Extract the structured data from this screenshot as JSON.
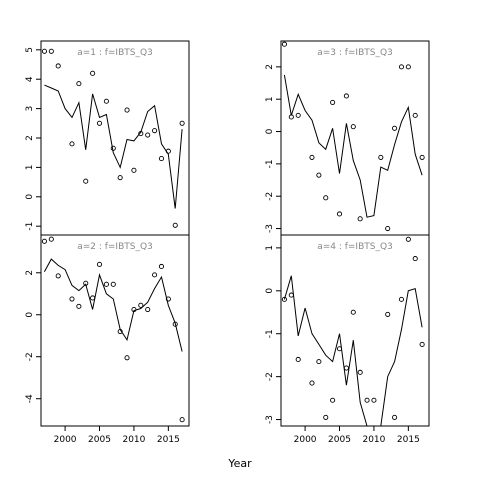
{
  "xlabel": "Year",
  "chart_data": [
    {
      "type": "scatter",
      "title": "a=1  :  f=IBTS_Q3",
      "xlim": [
        1996.5,
        2018
      ],
      "ylim": [
        -1.3,
        5.3
      ],
      "yticks": [
        -1,
        0,
        1,
        2,
        3,
        4,
        5
      ],
      "xticks": [
        2000,
        2005,
        2010,
        2015
      ],
      "show_xticks": false,
      "points": {
        "x": [
          1997,
          1998,
          1999,
          2001,
          2002,
          2003,
          2004,
          2005,
          2006,
          2007,
          2008,
          2009,
          2010,
          2011,
          2012,
          2013,
          2014,
          2015,
          2016,
          2017
        ],
        "y": [
          4.95,
          4.95,
          4.45,
          1.8,
          3.85,
          0.53,
          4.2,
          2.5,
          3.25,
          1.65,
          0.65,
          2.95,
          0.9,
          2.15,
          2.1,
          2.25,
          1.3,
          1.55,
          -0.97,
          2.5
        ]
      },
      "line": {
        "x": [
          1997,
          1998,
          1999,
          2000,
          2001,
          2002,
          2003,
          2004,
          2005,
          2006,
          2007,
          2008,
          2009,
          2010,
          2011,
          2012,
          2013,
          2014,
          2015,
          2016,
          2017
        ],
        "y": [
          3.8,
          3.7,
          3.6,
          3.0,
          2.7,
          3.2,
          1.6,
          3.5,
          2.7,
          2.8,
          1.5,
          1.0,
          1.95,
          1.9,
          2.2,
          2.9,
          3.1,
          1.8,
          1.45,
          -0.4,
          2.3
        ]
      }
    },
    {
      "type": "scatter",
      "title": "a=3  :  f=IBTS_Q3",
      "xlim": [
        1996.5,
        2018
      ],
      "ylim": [
        -3.2,
        2.8
      ],
      "yticks": [
        -3,
        -2,
        -1,
        0,
        1,
        2
      ],
      "xticks": [
        2000,
        2005,
        2010,
        2015
      ],
      "show_xticks": false,
      "points": {
        "x": [
          1997,
          1998,
          1999,
          2001,
          2002,
          2003,
          2004,
          2005,
          2006,
          2007,
          2008,
          2011,
          2012,
          2013,
          2014,
          2015,
          2016,
          2017
        ],
        "y": [
          2.7,
          0.45,
          0.5,
          -0.8,
          -1.35,
          -2.05,
          0.9,
          -2.55,
          1.1,
          0.15,
          -2.7,
          -0.8,
          -3.0,
          0.1,
          2.0,
          2.0,
          0.5,
          -0.8
        ]
      },
      "line": {
        "x": [
          1997,
          1998,
          1999,
          2000,
          2001,
          2002,
          2003,
          2004,
          2005,
          2006,
          2007,
          2008,
          2009,
          2010,
          2011,
          2012,
          2013,
          2014,
          2015,
          2016,
          2017
        ],
        "y": [
          1.75,
          0.5,
          1.15,
          0.65,
          0.35,
          -0.35,
          -0.55,
          0.1,
          -1.3,
          0.25,
          -0.9,
          -1.5,
          -2.65,
          -2.6,
          -1.1,
          -1.2,
          -0.4,
          0.3,
          0.75,
          -0.7,
          -1.35
        ]
      }
    },
    {
      "type": "scatter",
      "title": "a=2  :  f=IBTS_Q3",
      "xlim": [
        1996.5,
        2018
      ],
      "ylim": [
        -5.3,
        3.8
      ],
      "yticks": [
        -4,
        -2,
        0,
        2
      ],
      "xticks": [
        2000,
        2005,
        2010,
        2015
      ],
      "show_xticks": true,
      "points": {
        "x": [
          1997,
          1998,
          1999,
          2001,
          2002,
          2003,
          2004,
          2005,
          2006,
          2007,
          2008,
          2009,
          2010,
          2011,
          2012,
          2013,
          2014,
          2015,
          2016,
          2017
        ],
        "y": [
          3.5,
          3.6,
          1.85,
          0.75,
          0.4,
          1.5,
          0.8,
          2.4,
          1.45,
          1.45,
          -0.8,
          -2.05,
          0.25,
          0.45,
          0.25,
          1.9,
          2.3,
          0.75,
          -0.45,
          -5.0
        ]
      },
      "line": {
        "x": [
          1997,
          1998,
          1999,
          2000,
          2001,
          2002,
          2003,
          2004,
          2005,
          2006,
          2007,
          2008,
          2009,
          2010,
          2011,
          2012,
          2013,
          2014,
          2015,
          2016,
          2017
        ],
        "y": [
          2.05,
          2.65,
          2.35,
          2.15,
          1.4,
          1.15,
          1.45,
          0.25,
          1.9,
          1.0,
          0.75,
          -0.7,
          -1.2,
          0.2,
          0.3,
          0.6,
          1.25,
          1.8,
          0.45,
          -0.4,
          -1.75
        ]
      }
    },
    {
      "type": "scatter",
      "title": "a=4  :  f=IBTS_Q3",
      "xlim": [
        1996.5,
        2018
      ],
      "ylim": [
        -3.15,
        1.3
      ],
      "yticks": [
        -3,
        -2,
        -1,
        0,
        1
      ],
      "xticks": [
        2000,
        2005,
        2010,
        2015
      ],
      "show_xticks": true,
      "points": {
        "x": [
          1997,
          1998,
          1999,
          2001,
          2002,
          2003,
          2004,
          2005,
          2006,
          2007,
          2008,
          2009,
          2010,
          2012,
          2013,
          2014,
          2015,
          2016,
          2017
        ],
        "y": [
          -0.2,
          -0.1,
          -1.6,
          -2.15,
          -1.65,
          -2.95,
          -2.55,
          -1.35,
          -1.8,
          -0.5,
          -1.9,
          -2.55,
          -2.55,
          -0.55,
          -2.95,
          -0.2,
          1.2,
          0.75,
          -1.25
        ]
      },
      "line": {
        "x": [
          1997,
          1998,
          1999,
          2000,
          2001,
          2002,
          2003,
          2004,
          2005,
          2006,
          2007,
          2008,
          2009,
          2010,
          2011,
          2012,
          2013,
          2014,
          2015,
          2016,
          2017
        ],
        "y": [
          -0.2,
          0.35,
          -1.05,
          -0.4,
          -1.0,
          -1.25,
          -1.5,
          -1.65,
          -1.0,
          -2.2,
          -1.15,
          -2.6,
          -3.15,
          -3.15,
          -3.15,
          -2.0,
          -1.65,
          -0.9,
          0.0,
          0.05,
          -0.85
        ]
      }
    }
  ]
}
